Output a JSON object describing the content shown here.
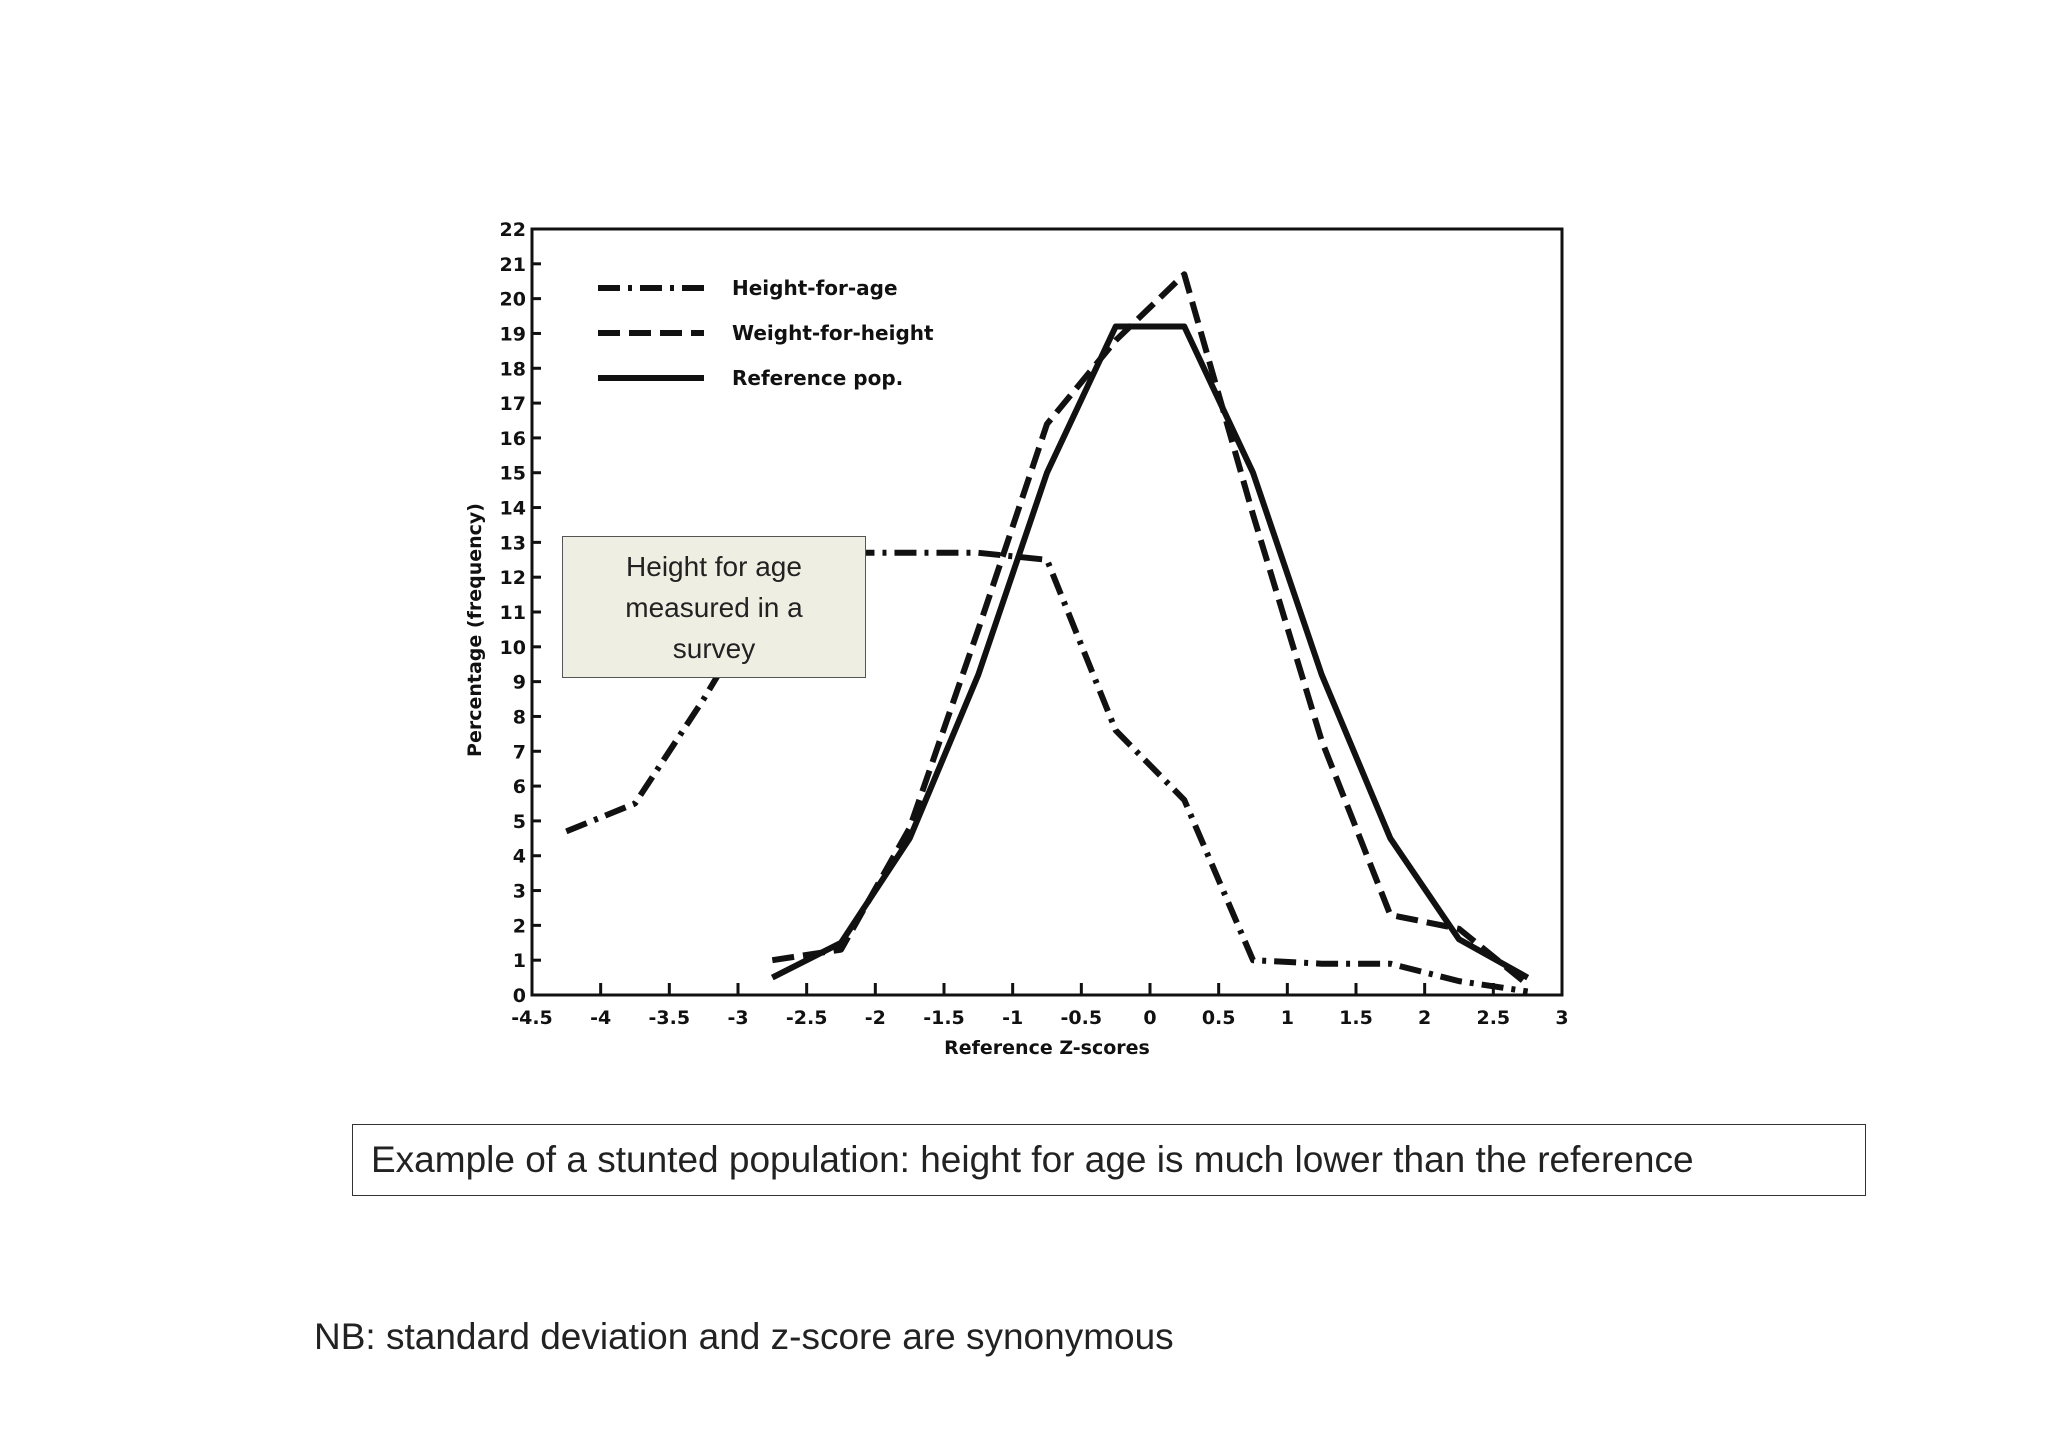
{
  "chart_data": {
    "type": "line",
    "xlabel": "Reference Z-scores",
    "ylabel": "Percentage (frequency)",
    "xlim": [
      -4.5,
      3
    ],
    "ylim": [
      0,
      22
    ],
    "x_ticks": [
      "-4.5",
      "-4",
      "-3.5",
      "-3",
      "-2.5",
      "-2",
      "-1.5",
      "-1",
      "-0.5",
      "0",
      "0.5",
      "1",
      "1.5",
      "2",
      "2.5",
      "3"
    ],
    "y_ticks": [
      "0",
      "1",
      "2",
      "3",
      "4",
      "5",
      "6",
      "7",
      "8",
      "9",
      "10",
      "11",
      "12",
      "13",
      "14",
      "15",
      "16",
      "17",
      "18",
      "19",
      "20",
      "21",
      "22"
    ],
    "legend_position": "top-left",
    "series": [
      {
        "name": "Height-for-age",
        "style": "dash-dot",
        "points": [
          [
            -4.25,
            4.7
          ],
          [
            -3.75,
            5.5
          ],
          [
            -3.25,
            8.5
          ],
          [
            -2.75,
            11.8
          ],
          [
            -2.25,
            12.7
          ],
          [
            -1.75,
            12.7
          ],
          [
            -1.25,
            12.7
          ],
          [
            -0.75,
            12.5
          ],
          [
            -0.25,
            7.6
          ],
          [
            0.25,
            5.6
          ],
          [
            0.75,
            1.0
          ],
          [
            1.25,
            0.9
          ],
          [
            1.75,
            0.9
          ],
          [
            2.25,
            0.4
          ],
          [
            2.75,
            0.1
          ]
        ]
      },
      {
        "name": "Weight-for-height",
        "style": "dashed",
        "points": [
          [
            -2.75,
            1.0
          ],
          [
            -2.25,
            1.3
          ],
          [
            -1.75,
            4.8
          ],
          [
            -1.25,
            10.5
          ],
          [
            -0.75,
            16.4
          ],
          [
            -0.25,
            18.8
          ],
          [
            0.25,
            20.7
          ],
          [
            0.75,
            13.8
          ],
          [
            1.25,
            7.3
          ],
          [
            1.75,
            2.3
          ],
          [
            2.25,
            1.9
          ],
          [
            2.75,
            0.3
          ]
        ]
      },
      {
        "name": "Reference pop.",
        "style": "solid",
        "points": [
          [
            -2.75,
            0.5
          ],
          [
            -2.25,
            1.5
          ],
          [
            -1.75,
            4.5
          ],
          [
            -1.25,
            9.2
          ],
          [
            -0.75,
            15.0
          ],
          [
            -0.25,
            19.2
          ],
          [
            0.25,
            19.2
          ],
          [
            0.75,
            15.0
          ],
          [
            1.25,
            9.2
          ],
          [
            1.75,
            4.5
          ],
          [
            2.25,
            1.6
          ],
          [
            2.75,
            0.5
          ]
        ]
      }
    ]
  },
  "callout": {
    "text": "Height for age measured in a survey"
  },
  "caption": "Example of a stunted population: height for age is much lower than the reference",
  "note": "NB: standard deviation and z-score are synonymous"
}
